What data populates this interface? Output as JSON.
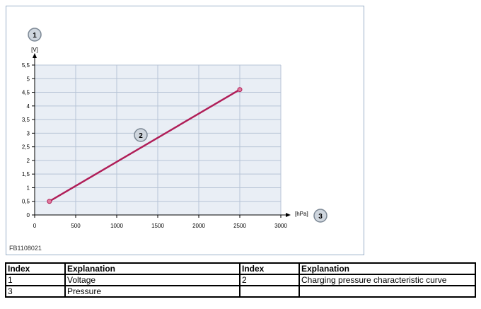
{
  "figure_code": "FB1108021",
  "chart_data": {
    "type": "line",
    "x": [
      180,
      2500
    ],
    "series": [
      {
        "values": [
          0.5,
          4.6
        ],
        "color": "#b01e58"
      }
    ],
    "xlim": [
      0,
      3000
    ],
    "ylim": [
      0,
      5.5
    ],
    "x_ticks": [
      "0",
      "500",
      "1000",
      "1500",
      "2000",
      "2500",
      "3000"
    ],
    "y_ticks": [
      "0",
      "0,5",
      "1",
      "1,5",
      "2",
      "2,5",
      "3",
      "3,5",
      "4",
      "4,5",
      "5",
      "5,5"
    ],
    "x_unit": "[hPa]",
    "y_unit": "[V]",
    "grid": true,
    "callouts": [
      {
        "label": "1",
        "target": "y-axis"
      },
      {
        "label": "2",
        "target": "curve"
      },
      {
        "label": "3",
        "target": "x-axis"
      }
    ]
  },
  "table": {
    "header": [
      "Index",
      "Explanation",
      "Index",
      "Explanation"
    ],
    "rows": [
      [
        "1",
        "Voltage",
        "2",
        "Charging pressure characteristic curve"
      ],
      [
        "3",
        "Pressure",
        "",
        ""
      ]
    ]
  }
}
